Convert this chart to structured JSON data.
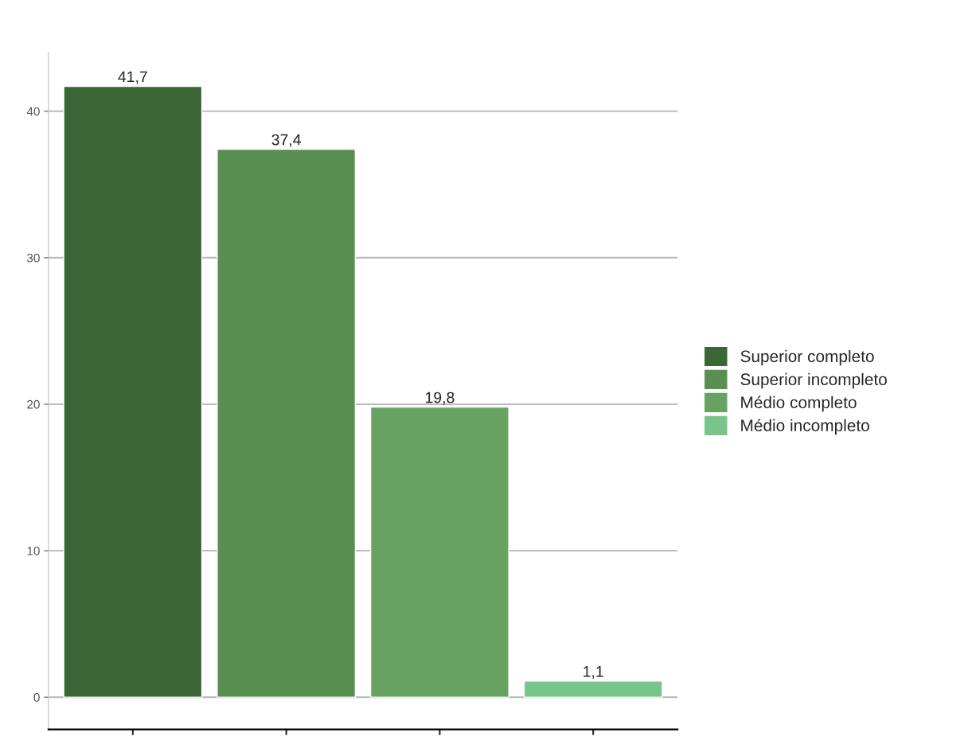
{
  "chart_data": {
    "type": "bar",
    "categories": [
      null,
      null,
      null,
      null
    ],
    "series": [
      {
        "name": "Superior completo",
        "color": "#3b6636",
        "values": [
          41.7,
          null,
          null,
          null
        ],
        "value_labels": [
          "41,7",
          null,
          null,
          null
        ]
      },
      {
        "name": "Superior incompleto",
        "color": "#5a8f52",
        "values": [
          null,
          37.4,
          null,
          null
        ],
        "value_labels": [
          null,
          "37,4",
          null,
          null
        ]
      },
      {
        "name": "Médio completo",
        "color": "#67a263",
        "values": [
          null,
          null,
          19.8,
          null
        ],
        "value_labels": [
          null,
          null,
          "19,8",
          null
        ]
      },
      {
        "name": "Médio incompleto",
        "color": "#78c58a",
        "values": [
          null,
          null,
          null,
          1.1
        ],
        "value_labels": [
          null,
          null,
          null,
          "1,1"
        ]
      }
    ],
    "ylim": [
      -2.2,
      44
    ],
    "yticks": [
      0,
      10,
      20,
      30,
      40
    ],
    "grid": "y",
    "legend": "right"
  }
}
